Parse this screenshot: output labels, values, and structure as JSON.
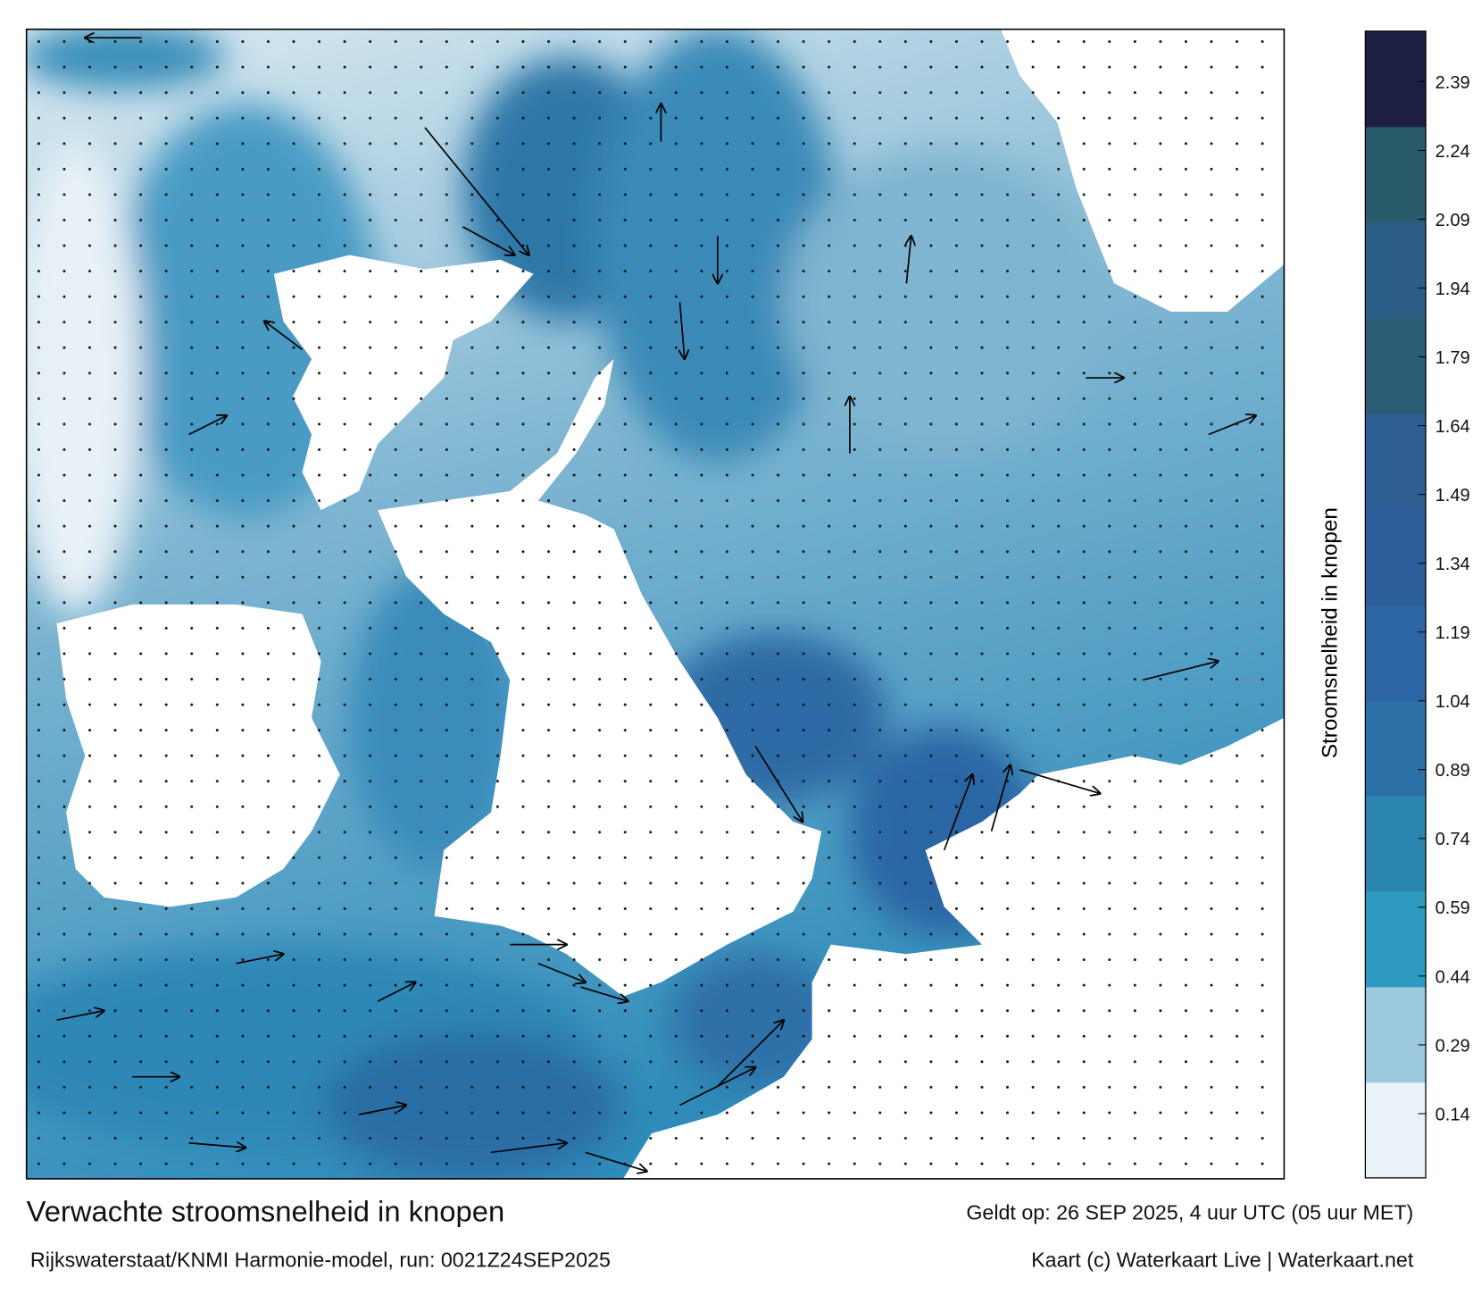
{
  "title": "Verwachte stroomsnelheid in knopen",
  "valid_time": "Geldt op: 26 SEP 2025, 4 uur UTC (05 uur MET)",
  "source": "Rijkswaterstaat/KNMI Harmonie-model, run: 0021Z24SEP2025",
  "credit": "Kaart (c) Waterkaart Live | Waterkaart.net",
  "colorbar": {
    "label": "Stroomsnelheid in knopen",
    "clim": [
      0,
      2.5
    ],
    "ticks": [
      0.14,
      0.29,
      0.44,
      0.59,
      0.74,
      0.89,
      1.04,
      1.19,
      1.34,
      1.49,
      1.64,
      1.79,
      1.94,
      2.09,
      2.24,
      2.39
    ],
    "colors": [
      "#e8f2f7",
      "#9cc9dd",
      "#2e9ac1",
      "#2b86af",
      "#2b70a7",
      "#2c64a4",
      "#2d5e9c",
      "#2e5e92",
      "#2b5e74",
      "#2c5e88",
      "#2a5b6b",
      "#1d1f42"
    ]
  }
}
